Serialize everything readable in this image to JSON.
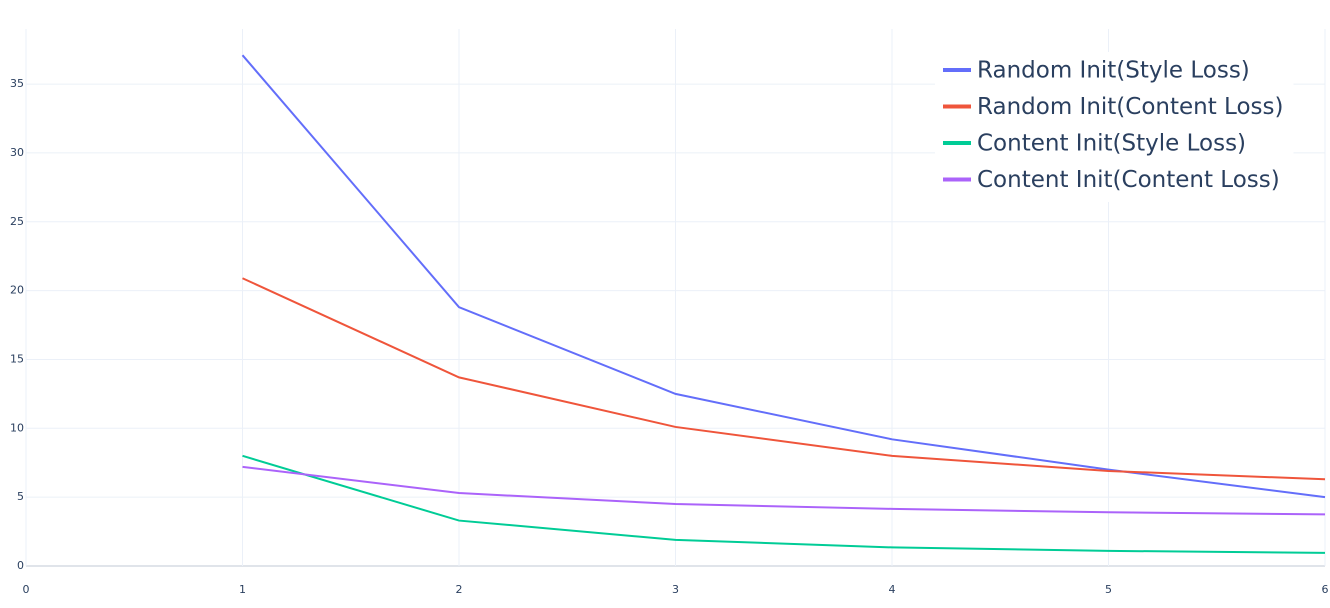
{
  "chart_data": {
    "type": "line",
    "x": [
      1,
      2,
      3,
      4,
      5,
      6
    ],
    "series": [
      {
        "name": "Random Init(Style Loss)",
        "color": "#636efa",
        "values": [
          37.1,
          18.8,
          12.5,
          9.2,
          7.0,
          5.0
        ]
      },
      {
        "name": "Random Init(Content Loss)",
        "color": "#ef553b",
        "values": [
          20.9,
          13.7,
          10.1,
          8.0,
          6.9,
          6.3
        ]
      },
      {
        "name": "Content Init(Style Loss)",
        "color": "#00cc96",
        "values": [
          8.0,
          3.3,
          1.9,
          1.35,
          1.1,
          0.95
        ]
      },
      {
        "name": "Content Init(Content Loss)",
        "color": "#ab63fa",
        "values": [
          7.2,
          5.3,
          4.5,
          4.15,
          3.9,
          3.75
        ]
      }
    ],
    "xlim": [
      0,
      6
    ],
    "xticks": [
      0,
      1,
      2,
      3,
      4,
      5,
      6
    ],
    "ylim": [
      0,
      39
    ],
    "yticks": [
      0,
      5,
      10,
      15,
      20,
      25,
      30,
      35
    ],
    "grid": true,
    "legend": "top-right"
  }
}
